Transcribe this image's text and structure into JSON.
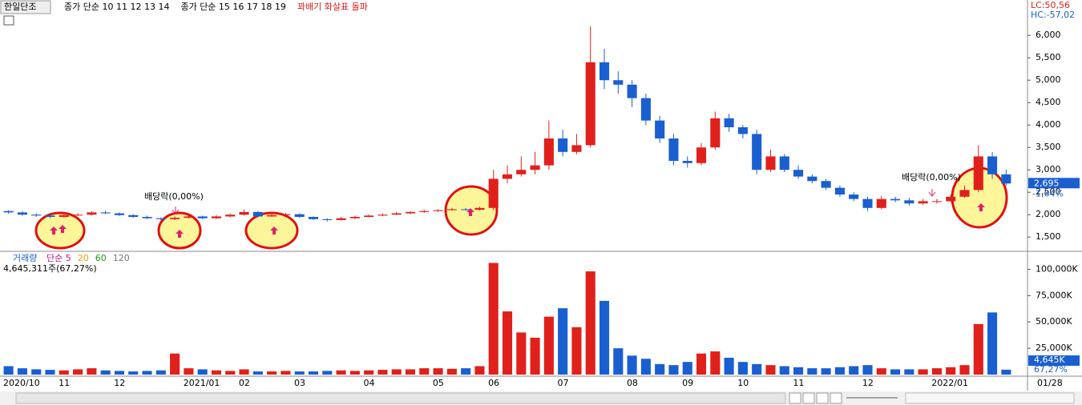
{
  "chart_data": [
    {
      "type": "candlestick",
      "title": "한일단조",
      "legend_items": [
        "종가 단순 10 11 12 13 14",
        "종가 단순 15 16 17 18 19",
        "꽈배기 화살표 돌파"
      ],
      "legend_colors": [
        "#000000",
        "#000000",
        "#d81b1b"
      ],
      "lc_label": "LC:50,56",
      "hc_label": "HC:-57,02",
      "annotations": [
        "배당락(0,00%)",
        "배당락(0,00%)"
      ],
      "last_price_label": "2,695",
      "change_label": "-1,64%",
      "up_color": "#e0201b",
      "down_color": "#1a5fd0",
      "categories": [
        "2020/10",
        null,
        null,
        null,
        "11",
        null,
        null,
        null,
        "12",
        null,
        null,
        null,
        null,
        "2021/01",
        null,
        null,
        null,
        "02",
        null,
        null,
        null,
        "03",
        null,
        null,
        null,
        null,
        "04",
        null,
        null,
        null,
        null,
        "05",
        null,
        null,
        null,
        "06",
        null,
        null,
        null,
        null,
        "07",
        null,
        null,
        null,
        null,
        "08",
        null,
        null,
        null,
        "09",
        null,
        null,
        null,
        "10",
        null,
        null,
        null,
        "11",
        null,
        null,
        null,
        null,
        "12",
        null,
        null,
        null,
        null,
        "2022/01",
        null,
        null,
        null,
        null,
        null
      ],
      "end_label": "01/28",
      "open": [
        2080,
        2050,
        2000,
        1980,
        1950,
        1990,
        2000,
        2050,
        2030,
        1990,
        1950,
        1920,
        1900,
        1930,
        1960,
        1920,
        1960,
        2000,
        2060,
        1960,
        1990,
        2010,
        1950,
        1900,
        1880,
        1920,
        1950,
        1980,
        2000,
        2030,
        2060,
        2080,
        2100,
        2120,
        2110,
        2150,
        2800,
        2900,
        3000,
        3100,
        3700,
        3400,
        3550,
        5400,
        5000,
        4900,
        4600,
        4100,
        3700,
        3200,
        3150,
        3500,
        4150,
        3950,
        3800,
        3000,
        3300,
        3000,
        2850,
        2750,
        2600,
        2450,
        2350,
        2150,
        2350,
        2320,
        2250,
        2300,
        2300,
        2400,
        2550,
        3300,
        2900
      ],
      "high": [
        2100,
        2080,
        2030,
        2010,
        2020,
        2030,
        2080,
        2090,
        2050,
        2010,
        1980,
        1940,
        1960,
        1990,
        1980,
        1990,
        2030,
        2120,
        2080,
        2020,
        2040,
        2030,
        1960,
        1920,
        1950,
        1980,
        2000,
        2030,
        2060,
        2080,
        2110,
        2120,
        2150,
        2150,
        2180,
        3000,
        3100,
        3300,
        3400,
        4100,
        3900,
        3800,
        6200,
        5700,
        5200,
        5000,
        4700,
        4200,
        3800,
        3300,
        3600,
        4300,
        4250,
        4000,
        3900,
        3450,
        3350,
        3100,
        2900,
        2800,
        2650,
        2500,
        2400,
        2420,
        2400,
        2380,
        2350,
        2350,
        2450,
        2650,
        3550,
        3400,
        3000
      ],
      "low": [
        2020,
        1980,
        1950,
        1920,
        1930,
        1970,
        1980,
        2010,
        1970,
        1930,
        1900,
        1880,
        1880,
        1910,
        1900,
        1900,
        1940,
        1980,
        1940,
        1950,
        1970,
        1930,
        1880,
        1850,
        1870,
        1900,
        1940,
        1970,
        1990,
        2010,
        2040,
        2060,
        2090,
        2090,
        2090,
        2100,
        2700,
        2850,
        2900,
        3000,
        3300,
        3350,
        3500,
        4800,
        4700,
        4400,
        4000,
        3600,
        3100,
        3050,
        3100,
        3450,
        3850,
        3700,
        2900,
        2950,
        2950,
        2800,
        2700,
        2550,
        2400,
        2300,
        2080,
        2120,
        2280,
        2200,
        2220,
        2250,
        2280,
        2380,
        2500,
        2800,
        2650
      ],
      "close": [
        2050,
        2000,
        1980,
        1950,
        1990,
        2000,
        2050,
        2030,
        1990,
        1950,
        1920,
        1900,
        1930,
        1960,
        1920,
        1960,
        2000,
        2060,
        1960,
        1990,
        2010,
        1950,
        1900,
        1880,
        1920,
        1950,
        1980,
        2000,
        2030,
        2060,
        2080,
        2100,
        2120,
        2110,
        2150,
        2800,
        2900,
        3000,
        3100,
        3700,
        3400,
        3550,
        5400,
        5000,
        4900,
        4600,
        4100,
        3700,
        3200,
        3150,
        3500,
        4150,
        3950,
        3800,
        3000,
        3300,
        3000,
        2850,
        2750,
        2600,
        2450,
        2350,
        2150,
        2350,
        2320,
        2250,
        2300,
        2300,
        2400,
        2550,
        3300,
        2900,
        2695
      ],
      "ylim": [
        1200,
        6700
      ],
      "yticks": [
        {
          "value": 1500,
          "label": "1,500"
        },
        {
          "value": 2000,
          "label": "2,000"
        },
        {
          "value": 2500,
          "label": "2,500"
        },
        {
          "value": 3000,
          "label": "3,000"
        },
        {
          "value": 3500,
          "label": "3,500"
        },
        {
          "value": 4000,
          "label": "4,000"
        },
        {
          "value": 4500,
          "label": "4,500"
        },
        {
          "value": 5000,
          "label": "5,000"
        },
        {
          "value": 5500,
          "label": "5,500"
        },
        {
          "value": 6000,
          "label": "6,000"
        }
      ]
    },
    {
      "type": "bar",
      "title": "거래량",
      "legend_items": [
        "단순 5",
        "20",
        "60",
        "120"
      ],
      "legend_colors": [
        "#c71585",
        "#e8a000",
        "#1e9a1e",
        "#777777"
      ],
      "current_label": "4,645,311주(67,27%)",
      "last_value_label": "4,645K",
      "ratio_label": "67,27%",
      "values": [
        8000,
        6000,
        5000,
        4500,
        4000,
        5000,
        6000,
        4000,
        3500,
        3000,
        3500,
        4000,
        20000,
        6000,
        5000,
        4000,
        3500,
        5000,
        3000,
        3000,
        3500,
        3000,
        3000,
        3500,
        4000,
        3500,
        4000,
        4500,
        5000,
        5000,
        6000,
        6000,
        5500,
        6000,
        8000,
        106000,
        60000,
        40000,
        35000,
        55000,
        63000,
        45000,
        98000,
        70000,
        25000,
        18000,
        15000,
        10000,
        9000,
        12000,
        20000,
        22000,
        16000,
        12000,
        10000,
        9000,
        8000,
        7000,
        6000,
        6000,
        7000,
        8000,
        9000,
        6000,
        5000,
        5000,
        5000,
        6000,
        7000,
        9000,
        48000,
        59000,
        4645
      ],
      "ylim": [
        0,
        114000
      ],
      "yticks": [
        {
          "value": 25000,
          "label": "25,000K"
        },
        {
          "value": 50000,
          "label": "50,000K"
        },
        {
          "value": 75000,
          "label": "75,000K"
        },
        {
          "value": 100000,
          "label": "100,000K"
        }
      ]
    }
  ]
}
